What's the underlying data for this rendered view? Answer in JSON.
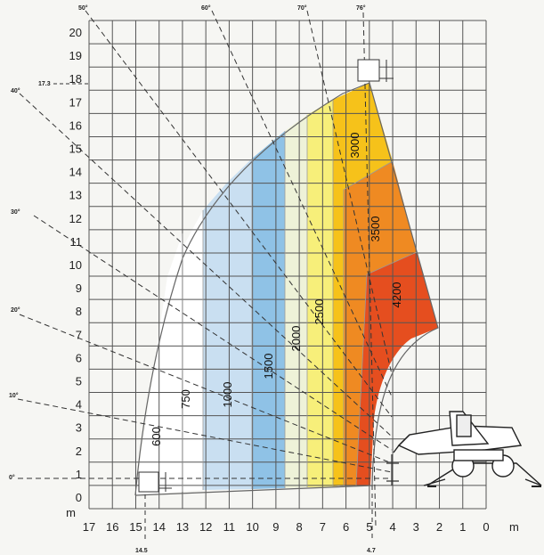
{
  "axes": {
    "y_ticks": [
      "0",
      "1",
      "2",
      "3",
      "4",
      "5",
      "6",
      "7",
      "8",
      "9",
      "10",
      "11",
      "12",
      "13",
      "14",
      "15",
      "16",
      "17",
      "18",
      "19",
      "20"
    ],
    "y_unit": "m",
    "x_ticks": [
      "17",
      "16",
      "15",
      "14",
      "13",
      "12",
      "11",
      "10",
      "9",
      "8",
      "7",
      "6",
      "5",
      "4",
      "3",
      "2",
      "1",
      "0"
    ],
    "x_unit": "m"
  },
  "markers": {
    "max_height": "17.3",
    "max_reach": "14.5",
    "min_reach": "4.7"
  },
  "angles": [
    "0°",
    "10°",
    "20°",
    "30°",
    "40°",
    "50°",
    "60°",
    "70°",
    "76°"
  ],
  "zones": [
    {
      "load": "600",
      "color": "#ffffff"
    },
    {
      "load": "750",
      "color": "#ffffff"
    },
    {
      "load": "1000",
      "color": "#c9dff1"
    },
    {
      "load": "1500",
      "color": "#8fc2e6"
    },
    {
      "load": "2000",
      "color": "#eef2d8"
    },
    {
      "load": "2500",
      "color": "#f7ef7a"
    },
    {
      "load": "3000",
      "color": "#f6c21a"
    },
    {
      "load": "3500",
      "color": "#ef8a22"
    },
    {
      "load": "4200",
      "color": "#e54e1f"
    }
  ]
}
